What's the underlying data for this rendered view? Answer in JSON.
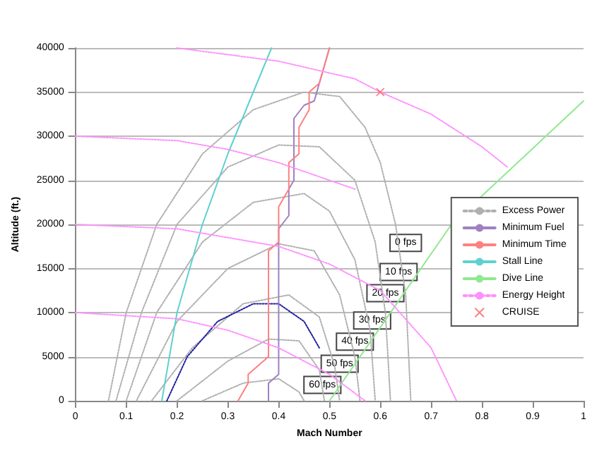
{
  "chart_data": {
    "type": "line",
    "xlabel": "Mach Number",
    "ylabel": "Altitude (ft.)",
    "xlim": [
      0,
      1
    ],
    "xticks": [
      0,
      0.1,
      0.2,
      0.3,
      0.4,
      0.5,
      0.6,
      0.7,
      0.8,
      0.9,
      1
    ],
    "ylim": [
      0,
      40000
    ],
    "yticks": [
      0,
      5000,
      10000,
      15000,
      20000,
      25000,
      30000,
      35000,
      40000
    ],
    "grid": "y",
    "legend": "right",
    "annotations": [
      {
        "text": "0 fps",
        "x": 0.65,
        "y": 17900
      },
      {
        "text": "10 fps",
        "x": 0.636,
        "y": 14600
      },
      {
        "text": "20 fps",
        "x": 0.61,
        "y": 12200
      },
      {
        "text": "30 fps",
        "x": 0.584,
        "y": 9100
      },
      {
        "text": "40 fps",
        "x": 0.55,
        "y": 6700
      },
      {
        "text": "50 fps",
        "x": 0.52,
        "y": 4200
      },
      {
        "text": "60 fps",
        "x": 0.486,
        "y": 1800
      }
    ],
    "series": [
      {
        "name": "Excess Power",
        "color": "#b0b0b0",
        "line_style": "dotted",
        "x": [
          0.065,
          0.1,
          0.16,
          0.25,
          0.35,
          0.45,
          0.52,
          0.57,
          0.6,
          0.63,
          0.65,
          0.66,
          null,
          0.08,
          0.13,
          0.2,
          0.3,
          0.4,
          0.48,
          0.55,
          0.59,
          0.61,
          0.62,
          null,
          0.1,
          0.16,
          0.25,
          0.35,
          0.45,
          0.5,
          0.55,
          0.58,
          0.59,
          null,
          0.12,
          0.2,
          0.3,
          0.4,
          0.47,
          0.52,
          0.55,
          0.56,
          null,
          0.15,
          0.23,
          0.33,
          0.42,
          0.48,
          0.51,
          0.52,
          null,
          0.2,
          0.3,
          0.38,
          0.44,
          0.48,
          0.49,
          null,
          0.25,
          0.33,
          0.4,
          0.44,
          0.45
        ],
        "values": [
          0,
          10000,
          20000,
          28000,
          33000,
          35000,
          34500,
          31000,
          27000,
          20000,
          12000,
          0,
          null,
          0,
          10000,
          20000,
          26500,
          29000,
          28800,
          25000,
          18000,
          10000,
          0,
          null,
          0,
          10000,
          18000,
          22500,
          23500,
          21500,
          16000,
          8000,
          0,
          null,
          0,
          9000,
          15000,
          17800,
          17000,
          12000,
          5000,
          0,
          null,
          0,
          6000,
          11000,
          12000,
          9500,
          4000,
          0,
          null,
          0,
          4500,
          7000,
          6800,
          3500,
          0,
          null,
          0,
          2000,
          2500,
          1000,
          0
        ]
      },
      {
        "color": "#2020a0",
        "line_style": "dotted",
        "x": [
          0.18,
          0.22,
          0.28,
          0.35,
          0.4,
          0.45,
          0.48
        ],
        "values": [
          0,
          5000,
          9000,
          11000,
          11000,
          9000,
          6000
        ]
      },
      {
        "name": "Minimum Fuel",
        "color": "#a080c0",
        "line_style": "solid",
        "x": [
          0.38,
          0.38,
          0.4,
          0.4,
          0.42,
          0.42,
          0.43,
          0.43,
          0.45,
          0.47,
          0.49,
          0.5
        ],
        "values": [
          0,
          2000,
          3000,
          19500,
          21000,
          24000,
          25000,
          32000,
          33500,
          34000,
          38000,
          40000
        ]
      },
      {
        "name": "Minimum Time",
        "color": "#ff8080",
        "line_style": "solid",
        "x": [
          0.32,
          0.34,
          0.34,
          0.38,
          0.38,
          0.4,
          0.4,
          0.42,
          0.42,
          0.44,
          0.44,
          0.46,
          0.46,
          0.48,
          0.49,
          0.5
        ],
        "values": [
          0,
          2000,
          3000,
          5000,
          17000,
          18000,
          22000,
          24000,
          27000,
          28000,
          31000,
          33000,
          35000,
          36000,
          38000,
          40000
        ]
      },
      {
        "name": "Stall Line",
        "color": "#60d0d0",
        "line_style": "solid",
        "x": [
          0.17,
          0.2,
          0.25,
          0.3,
          0.35,
          0.386
        ],
        "values": [
          0,
          10000,
          20000,
          28000,
          35000,
          40000
        ]
      },
      {
        "name": "Dive Line",
        "color": "#90e890",
        "line_style": "solid",
        "x": [
          0.5,
          0.74,
          1
        ],
        "values": [
          0,
          20000,
          34000
        ]
      },
      {
        "name": "Energy Height",
        "color": "#ff90ff",
        "line_style": "dotted",
        "x": [
          0.2,
          0.4,
          0.55,
          0.6,
          0.7,
          0.8,
          0.85,
          null,
          0,
          0.2,
          0.3,
          0.4,
          0.5,
          0.55,
          null,
          0,
          0.2,
          0.3,
          0.4,
          0.5,
          0.6,
          0.7,
          0.75,
          null,
          0,
          0.2,
          0.3,
          0.4,
          0.5,
          0.57
        ],
        "values": [
          40000,
          38500,
          36500,
          35000,
          32500,
          28800,
          26500,
          null,
          30000,
          29500,
          28500,
          27000,
          25000,
          24000,
          null,
          20000,
          19500,
          18500,
          17500,
          15500,
          12500,
          6000,
          0,
          null,
          10000,
          9300,
          8000,
          6000,
          3000,
          0
        ]
      },
      {
        "name": "CRUISE",
        "type": "scatter",
        "marker": "cross",
        "color": "#ff6060",
        "x": [
          0.6
        ],
        "values": [
          35000
        ]
      }
    ]
  }
}
